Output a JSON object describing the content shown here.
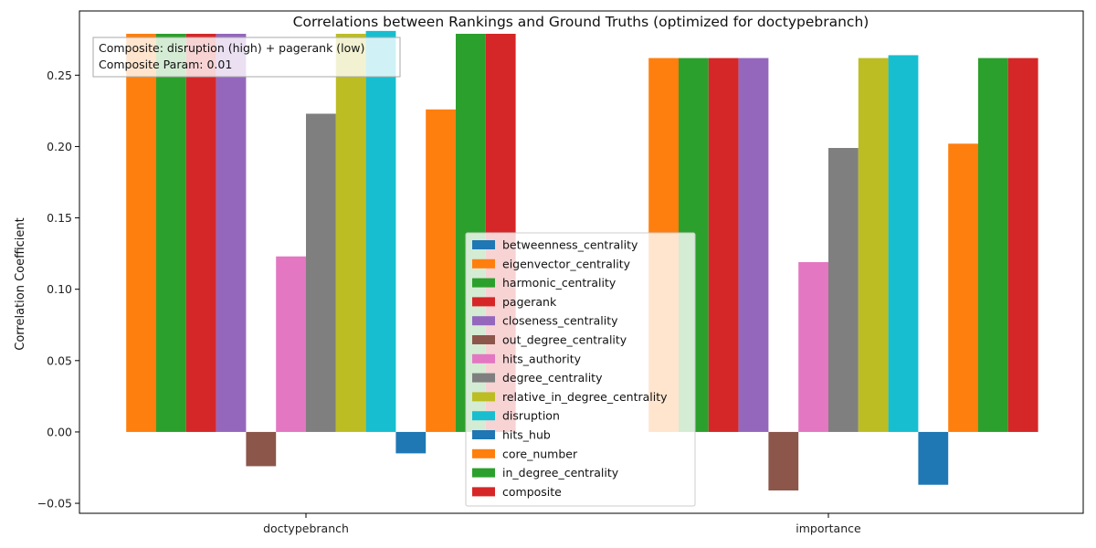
{
  "chart_data": {
    "type": "bar",
    "title": "Correlations between Rankings and Ground Truths (optimized for doctypebranch)",
    "xlabel": "",
    "ylabel": "Correlation Coefficient",
    "ylim": [
      -0.057,
      0.295
    ],
    "yticks": [
      -0.05,
      0.0,
      0.05,
      0.1,
      0.15,
      0.2,
      0.25
    ],
    "ytick_labels": [
      "−0.05",
      "0.00",
      "0.05",
      "0.10",
      "0.15",
      "0.20",
      "0.25"
    ],
    "categories": [
      "doctypebranch",
      "importance"
    ],
    "legend_position": "lower-center",
    "grid": false,
    "annotation": {
      "line1": "Composite: disruption (high) + pagerank (low)",
      "line2": "Composite Param: 0.01"
    },
    "series": [
      {
        "name": "betweenness_centrality",
        "color": "#1f77b4",
        "values": [
          0.0,
          0.0
        ]
      },
      {
        "name": "eigenvector_centrality",
        "color": "#ff7f0e",
        "values": [
          0.279,
          0.262
        ]
      },
      {
        "name": "harmonic_centrality",
        "color": "#2ca02c",
        "values": [
          0.279,
          0.262
        ]
      },
      {
        "name": "pagerank",
        "color": "#d62728",
        "values": [
          0.279,
          0.262
        ]
      },
      {
        "name": "closeness_centrality",
        "color": "#9467bd",
        "values": [
          0.279,
          0.262
        ]
      },
      {
        "name": "out_degree_centrality",
        "color": "#8c564b",
        "values": [
          -0.024,
          -0.041
        ]
      },
      {
        "name": "hits_authority",
        "color": "#e377c2",
        "values": [
          0.123,
          0.119
        ]
      },
      {
        "name": "degree_centrality",
        "color": "#7f7f7f",
        "values": [
          0.223,
          0.199
        ]
      },
      {
        "name": "relative_in_degree_centrality",
        "color": "#bcbd22",
        "values": [
          0.279,
          0.262
        ]
      },
      {
        "name": "disruption",
        "color": "#17becf",
        "values": [
          0.281,
          0.264
        ]
      },
      {
        "name": "hits_hub",
        "color": "#1f77b4",
        "values": [
          -0.015,
          -0.037
        ]
      },
      {
        "name": "core_number",
        "color": "#ff7f0e",
        "values": [
          0.226,
          0.202
        ]
      },
      {
        "name": "in_degree_centrality",
        "color": "#2ca02c",
        "values": [
          0.279,
          0.262
        ]
      },
      {
        "name": "composite",
        "color": "#d62728",
        "values": [
          0.279,
          0.262
        ]
      }
    ]
  }
}
